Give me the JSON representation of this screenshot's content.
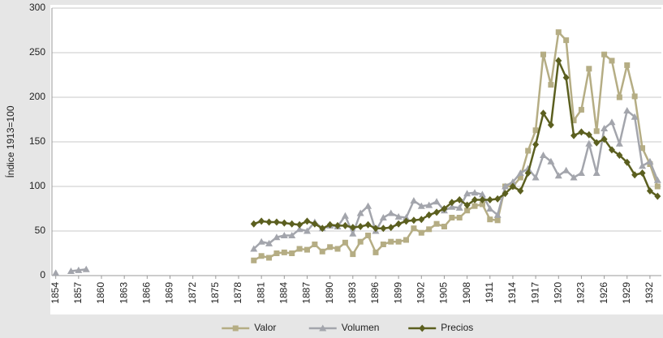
{
  "chart_data": {
    "type": "line",
    "y_label": "Índice 1913=100",
    "x": [
      1854,
      1855,
      1856,
      1857,
      1858,
      1859,
      1860,
      1861,
      1862,
      1863,
      1864,
      1865,
      1866,
      1867,
      1868,
      1869,
      1870,
      1871,
      1872,
      1873,
      1874,
      1875,
      1876,
      1877,
      1878,
      1879,
      1880,
      1881,
      1882,
      1883,
      1884,
      1885,
      1886,
      1887,
      1888,
      1889,
      1890,
      1891,
      1892,
      1893,
      1894,
      1895,
      1896,
      1897,
      1898,
      1899,
      1900,
      1901,
      1902,
      1903,
      1904,
      1905,
      1906,
      1907,
      1908,
      1909,
      1910,
      1911,
      1912,
      1913,
      1914,
      1915,
      1916,
      1917,
      1918,
      1919,
      1920,
      1921,
      1922,
      1923,
      1924,
      1925,
      1926,
      1927,
      1928,
      1929,
      1930,
      1931,
      1932,
      1933
    ],
    "series": [
      {
        "name": "Valor",
        "color": "#b5ad84",
        "marker": "square",
        "values": [
          null,
          null,
          null,
          null,
          null,
          null,
          null,
          null,
          null,
          null,
          null,
          null,
          null,
          null,
          null,
          null,
          null,
          null,
          null,
          null,
          null,
          null,
          null,
          null,
          null,
          null,
          17,
          22,
          20,
          25,
          26,
          25,
          30,
          29,
          35,
          27,
          32,
          30,
          37,
          24,
          38,
          45,
          26,
          35,
          38,
          38,
          40,
          53,
          48,
          52,
          58,
          55,
          65,
          65,
          73,
          78,
          80,
          63,
          62,
          100,
          100,
          110,
          140,
          163,
          248,
          214,
          273,
          264,
          174,
          186,
          232,
          162,
          248,
          241,
          200,
          236,
          201,
          143,
          125,
          100
        ]
      },
      {
        "name": "Volumen",
        "color": "#a3a5ac",
        "marker": "triangle",
        "values": [
          3,
          null,
          5,
          6,
          7,
          null,
          null,
          null,
          null,
          null,
          null,
          null,
          null,
          null,
          null,
          null,
          null,
          null,
          null,
          null,
          null,
          null,
          null,
          null,
          null,
          null,
          30,
          38,
          36,
          43,
          45,
          45,
          52,
          50,
          60,
          53,
          56,
          55,
          67,
          47,
          70,
          78,
          50,
          65,
          70,
          66,
          65,
          84,
          78,
          79,
          83,
          73,
          77,
          76,
          92,
          93,
          91,
          75,
          68,
          100,
          105,
          115,
          120,
          110,
          135,
          128,
          112,
          118,
          110,
          115,
          148,
          115,
          165,
          172,
          148,
          185,
          178,
          123,
          128,
          107
        ]
      },
      {
        "name": "Precios",
        "color": "#5b5f1f",
        "marker": "diamond",
        "values": [
          null,
          null,
          null,
          null,
          null,
          null,
          null,
          null,
          null,
          null,
          null,
          null,
          null,
          null,
          null,
          null,
          null,
          null,
          null,
          null,
          null,
          null,
          null,
          null,
          null,
          null,
          58,
          61,
          60,
          60,
          59,
          58,
          57,
          61,
          58,
          53,
          57,
          56,
          56,
          54,
          55,
          57,
          53,
          53,
          54,
          58,
          61,
          62,
          63,
          68,
          71,
          75,
          82,
          85,
          79,
          85,
          85,
          85,
          86,
          92,
          100,
          95,
          115,
          147,
          182,
          169,
          241,
          222,
          157,
          161,
          158,
          149,
          153,
          141,
          135,
          127,
          113,
          115,
          95,
          89
        ]
      }
    ],
    "xlim": [
      1853.5,
      1933.5
    ],
    "xticks": [
      1854,
      1857,
      1860,
      1863,
      1866,
      1869,
      1872,
      1875,
      1878,
      1881,
      1884,
      1887,
      1890,
      1893,
      1896,
      1899,
      1902,
      1905,
      1908,
      1911,
      1914,
      1917,
      1920,
      1923,
      1926,
      1929,
      1932
    ],
    "ylim": [
      0,
      300
    ],
    "yticks": [
      0,
      50,
      100,
      150,
      200,
      250,
      300
    ],
    "grid": true,
    "legend": "bottom"
  }
}
